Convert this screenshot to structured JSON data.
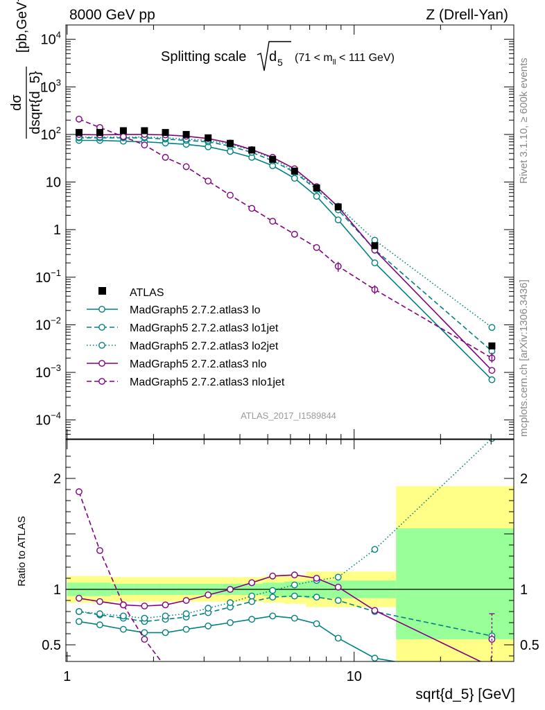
{
  "header": {
    "left": "8000 GeV pp",
    "right": "Z (Drell-Yan)",
    "title_main": "Splitting scale",
    "title_sym": "d",
    "title_sub": "5",
    "title_range": "(71 < m",
    "title_range_sub": "ll",
    "title_range_end": " < 111 GeV)",
    "side_top": "Rivet 3.1.10, ≥ 600k events",
    "side_bottom": "mcplots.cern.ch [arXiv:1306.3436]",
    "analysis_id": "ATLAS_2017_I1589844"
  },
  "chart_data": [
    {
      "type": "line",
      "title": "Splitting scale √d5 (71 < m_ll < 111 GeV)",
      "xlabel": "sqrt{d_5} [GeV]",
      "ylabel_num": "dσ",
      "ylabel_den": "dsqrt{d_5}",
      "ylabel_unit": "[pb,GeV",
      "ylabel_unit_exp": "-1",
      "ylabel_unit_end": "]",
      "xscale": "log",
      "yscale": "log",
      "xlim": [
        0.99,
        36
      ],
      "ylim": [
        4e-05,
        20000
      ],
      "y_ticks": [
        {
          "v": 10000,
          "m": "10",
          "e": "4"
        },
        {
          "v": 1000,
          "m": "10",
          "e": "3"
        },
        {
          "v": 100,
          "m": "10",
          "e": "2"
        },
        {
          "v": 10,
          "m": "10",
          "e": ""
        },
        {
          "v": 1,
          "m": "1",
          "e": ""
        },
        {
          "v": 0.1,
          "m": "10",
          "e": "−1"
        },
        {
          "v": 0.01,
          "m": "10",
          "e": "−2"
        },
        {
          "v": 0.001,
          "m": "10",
          "e": "−3"
        },
        {
          "v": 0.0001,
          "m": "10",
          "e": "−4"
        }
      ],
      "legend_position": "lower-left",
      "data": {
        "name": "ATLAS",
        "x": [
          1.1,
          1.3,
          1.57,
          1.86,
          2.2,
          2.6,
          3.1,
          3.7,
          4.4,
          5.2,
          6.2,
          7.4,
          8.8,
          11.8,
          30.2
        ],
        "y": [
          110,
          110,
          120,
          120,
          110,
          100,
          85,
          65,
          47,
          30,
          17,
          7.5,
          3,
          0.46,
          0.0036
        ],
        "xerr_lo": [
          1.0,
          1.2,
          1.42,
          1.71,
          2.03,
          2.4,
          2.85,
          3.4,
          4.0,
          4.8,
          5.7,
          6.8,
          8.1,
          9.5,
          14.0
        ],
        "xerr_hi": [
          1.2,
          1.42,
          1.71,
          2.03,
          2.4,
          2.85,
          3.4,
          4.0,
          4.8,
          5.7,
          6.8,
          8.1,
          9.5,
          14.0,
          50.0
        ]
      },
      "series": [
        {
          "name": "MadGraph5 2.7.2.atlas3 lo",
          "color": "#008080",
          "dash": "solid",
          "x": [
            1.1,
            1.3,
            1.57,
            1.86,
            2.2,
            2.6,
            3.1,
            3.7,
            4.4,
            5.2,
            6.2,
            7.4,
            8.8,
            11.8,
            30.2
          ],
          "y": [
            75,
            75,
            72,
            70,
            66,
            62,
            55,
            44,
            33,
            22,
            12,
            5.0,
            1.6,
            0.2,
            0.0007
          ]
        },
        {
          "name": "MadGraph5 2.7.2.atlas3 lo1jet",
          "color": "#008080",
          "dash": "dashed",
          "x": [
            1.1,
            1.3,
            1.57,
            1.86,
            2.2,
            2.6,
            3.1,
            3.7,
            4.4,
            5.2,
            6.2,
            7.4,
            8.8,
            11.8,
            30.2
          ],
          "y": [
            85,
            85,
            85,
            85,
            80,
            75,
            70,
            57,
            42,
            28,
            16,
            7.0,
            2.6,
            0.38,
            0.0028
          ]
        },
        {
          "name": "MadGraph5 2.7.2.atlas3 lo2jet",
          "color": "#008080",
          "dash": "dotted",
          "x": [
            1.1,
            1.3,
            1.57,
            1.86,
            2.2,
            2.6,
            3.1,
            3.7,
            4.4,
            5.2,
            6.2,
            7.4,
            8.8,
            11.8,
            30.2
          ],
          "y": [
            88,
            88,
            88,
            88,
            85,
            80,
            75,
            62,
            47,
            31,
            17,
            7.6,
            3.1,
            0.6,
            0.0088
          ]
        },
        {
          "name": "MadGraph5 2.7.2.atlas3 nlo",
          "color": "#800080",
          "dash": "solid",
          "x": [
            1.1,
            1.3,
            1.57,
            1.86,
            2.2,
            2.6,
            3.1,
            3.7,
            4.4,
            5.2,
            6.2,
            7.4,
            8.8,
            11.8,
            30.2
          ],
          "y": [
            100,
            98,
            100,
            100,
            98,
            92,
            82,
            66,
            48,
            33,
            19,
            8.0,
            3.0,
            0.37,
            0.0011
          ]
        },
        {
          "name": "MadGraph5 2.7.2.atlas3 nlo1jet",
          "color": "#800080",
          "dash": "dashed",
          "x": [
            1.1,
            1.3,
            1.57,
            1.86,
            2.2,
            2.6,
            3.1,
            3.7,
            4.4,
            5.2,
            6.2,
            7.4,
            8.8,
            11.8,
            30.2
          ],
          "y": [
            210,
            140,
            90,
            60,
            33,
            21,
            10.5,
            5.3,
            2.8,
            1.5,
            0.8,
            0.42,
            0.17,
            0.055,
            0.002
          ]
        }
      ]
    },
    {
      "type": "line",
      "title": "",
      "xlabel": "sqrt{d_5} [GeV]",
      "ylabel": "Ratio to ATLAS",
      "xscale": "log",
      "xlim": [
        0.99,
        36
      ],
      "ylim": [
        0.35,
        2.35
      ],
      "y_ticks": [
        2,
        1.5,
        1,
        0.5
      ],
      "y_tick_labels_left": [
        "2",
        "",
        "1",
        "0.5"
      ],
      "y_tick_labels_right": [
        "2",
        "",
        "1",
        "0.5"
      ],
      "x_ticks": [
        1,
        10
      ],
      "x_tick_labels": [
        "1",
        "10"
      ],
      "reference": 1,
      "bands": {
        "edges": [
          1.0,
          1.2,
          1.42,
          1.71,
          2.03,
          2.4,
          2.85,
          3.4,
          4.0,
          4.8,
          5.7,
          6.8,
          8.1,
          9.5,
          14.0,
          50.0
        ],
        "stat_lo": [
          0.94,
          0.94,
          0.95,
          0.95,
          0.95,
          0.95,
          0.95,
          0.95,
          0.95,
          0.94,
          0.93,
          0.92,
          0.92,
          0.92,
          0.55
        ],
        "stat_hi": [
          1.06,
          1.06,
          1.05,
          1.05,
          1.05,
          1.05,
          1.05,
          1.05,
          1.05,
          1.06,
          1.07,
          1.08,
          1.08,
          1.08,
          1.55
        ],
        "tot_lo": [
          0.88,
          0.88,
          0.89,
          0.89,
          0.89,
          0.89,
          0.89,
          0.89,
          0.89,
          0.88,
          0.87,
          0.84,
          0.84,
          0.84,
          0.2
        ],
        "tot_hi": [
          1.12,
          1.12,
          1.11,
          1.11,
          1.11,
          1.11,
          1.11,
          1.11,
          1.11,
          1.12,
          1.13,
          1.16,
          1.16,
          1.16,
          1.93
        ],
        "stat_color": "#99ff99",
        "tot_color": "#ffff88"
      },
      "series": [
        {
          "name": "MadGraph5 2.7.2.atlas3 lo",
          "color": "#008080",
          "dash": "solid",
          "x": [
            1.1,
            1.3,
            1.57,
            1.86,
            2.2,
            2.6,
            3.1,
            3.7,
            4.4,
            5.2,
            6.2,
            7.4,
            8.8,
            11.8,
            30.2
          ],
          "y": [
            0.71,
            0.68,
            0.64,
            0.61,
            0.61,
            0.64,
            0.67,
            0.7,
            0.73,
            0.76,
            0.74,
            0.69,
            0.56,
            0.38,
            0.2
          ]
        },
        {
          "name": "MadGraph5 2.7.2.atlas3 lo1jet",
          "color": "#008080",
          "dash": "dashed",
          "x": [
            1.1,
            1.3,
            1.57,
            1.86,
            2.2,
            2.6,
            3.1,
            3.7,
            4.4,
            5.2,
            6.2,
            7.4,
            8.8,
            11.8,
            30.2
          ],
          "y": [
            0.8,
            0.77,
            0.74,
            0.71,
            0.73,
            0.75,
            0.79,
            0.84,
            0.89,
            0.93,
            0.94,
            0.93,
            0.9,
            0.8,
            0.58
          ]
        },
        {
          "name": "MadGraph5 2.7.2.atlas3 lo2jet",
          "color": "#008080",
          "dash": "dotted",
          "x": [
            1.1,
            1.3,
            1.57,
            1.86,
            2.2,
            2.6,
            3.1,
            3.7,
            4.4,
            5.2,
            6.2,
            7.4,
            8.8,
            11.8,
            30.2
          ],
          "y": [
            0.8,
            0.78,
            0.76,
            0.74,
            0.76,
            0.78,
            0.83,
            0.88,
            0.94,
            0.99,
            1.04,
            1.08,
            1.11,
            1.36,
            2.36
          ]
        },
        {
          "name": "MadGraph5 2.7.2.atlas3 nlo",
          "color": "#800080",
          "dash": "solid",
          "x": [
            1.1,
            1.3,
            1.57,
            1.86,
            2.2,
            2.6,
            3.1,
            3.7,
            4.4,
            5.2,
            6.2,
            7.4,
            8.8,
            11.8,
            30.2
          ],
          "y": [
            0.92,
            0.89,
            0.86,
            0.85,
            0.86,
            0.9,
            0.95,
            1.0,
            1.06,
            1.12,
            1.13,
            1.1,
            1.02,
            0.81,
            0.3
          ]
        },
        {
          "name": "MadGraph5 2.7.2.atlas3 nlo1jet",
          "color": "#800080",
          "dash": "dashed",
          "x": [
            1.1,
            1.3,
            1.57,
            1.86,
            2.2,
            2.6,
            3.1,
            3.7,
            4.4,
            5.2,
            6.2,
            7.4,
            8.8,
            11.8,
            30.2
          ],
          "y": [
            1.88,
            1.35,
            0.86,
            0.55,
            0.3,
            null,
            null,
            null,
            null,
            null,
            null,
            null,
            null,
            null,
            0.55
          ]
        }
      ]
    }
  ]
}
